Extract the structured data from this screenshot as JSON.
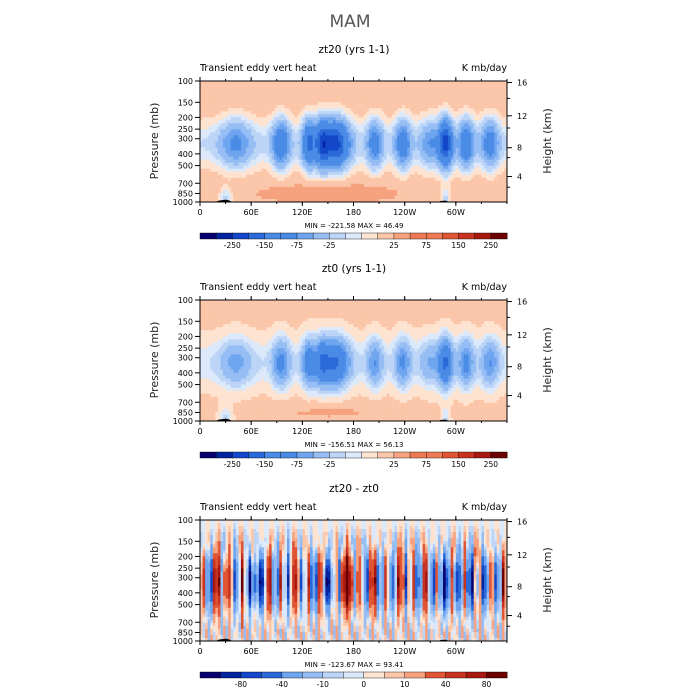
{
  "figure": {
    "title": "MAM"
  },
  "chart_data": [
    {
      "type": "heatmap",
      "title": "zt20 (yrs 1-1)",
      "left_label": "Transient eddy vert heat",
      "right_label": "K mb/day",
      "xlabel": "",
      "ylabel": "Pressure (mb)",
      "y2label": "Height (km)",
      "x_ticks": [
        "0",
        "60E",
        "120E",
        "180",
        "120W",
        "60W"
      ],
      "y_ticks": [
        "100",
        "150",
        "200",
        "250",
        "300",
        "400",
        "500",
        "700",
        "850",
        "1000"
      ],
      "y2_ticks": [
        "16",
        "12",
        "8",
        "4"
      ],
      "xlim": [
        0,
        360
      ],
      "ylim": [
        1000,
        100
      ],
      "min_max_text": "MIN = -221.58   MAX =   46.49",
      "min": -221.58,
      "max": 46.49,
      "colorbar_labels": [
        "-250",
        "-150",
        "-75",
        "-25",
        "25",
        "75",
        "150",
        "250"
      ],
      "colorbar_levels": [
        -300,
        -250,
        -200,
        -150,
        -100,
        -75,
        -50,
        -25,
        -10,
        0,
        10,
        25,
        50,
        75,
        100,
        150,
        200,
        250
      ],
      "field_summary": "mostly weakly positive; strong negative cores 250-500 mb near 150-165E and 70-80W"
    },
    {
      "type": "heatmap",
      "title": "zt0 (yrs 1-1)",
      "left_label": "Transient eddy vert heat",
      "right_label": "K mb/day",
      "xlabel": "",
      "ylabel": "Pressure (mb)",
      "y2label": "Height (km)",
      "x_ticks": [
        "0",
        "60E",
        "120E",
        "180",
        "120W",
        "60W"
      ],
      "y_ticks": [
        "100",
        "150",
        "200",
        "250",
        "300",
        "400",
        "500",
        "700",
        "850",
        "1000"
      ],
      "y2_ticks": [
        "16",
        "12",
        "8",
        "4"
      ],
      "xlim": [
        0,
        360
      ],
      "ylim": [
        1000,
        100
      ],
      "min_max_text": "MIN = -156.51   MAX =   56.13",
      "min": -156.51,
      "max": 56.13,
      "colorbar_labels": [
        "-250",
        "-150",
        "-75",
        "-25",
        "25",
        "75",
        "150",
        "250"
      ],
      "colorbar_levels": [
        -300,
        -250,
        -200,
        -150,
        -100,
        -75,
        -50,
        -25,
        -10,
        0,
        10,
        25,
        50,
        75,
        100,
        150,
        200,
        250
      ],
      "field_summary": "weaker negative cores 250-400 mb near 150-165E and 70W"
    },
    {
      "type": "heatmap",
      "title": "zt20 - zt0",
      "left_label": "Transient eddy vert heat",
      "right_label": "K mb/day",
      "xlabel": "",
      "ylabel": "Pressure (mb)",
      "y2label": "Height (km)",
      "x_ticks": [
        "0",
        "60E",
        "120E",
        "180",
        "120W",
        "60W"
      ],
      "y_ticks": [
        "100",
        "150",
        "200",
        "250",
        "300",
        "400",
        "500",
        "700",
        "850",
        "1000"
      ],
      "y2_ticks": [
        "16",
        "12",
        "8",
        "4"
      ],
      "xlim": [
        0,
        360
      ],
      "ylim": [
        1000,
        100
      ],
      "min_max_text": "MIN = -123.67   MAX =   93.41",
      "min": -123.67,
      "max": 93.41,
      "colorbar_labels": [
        "-80",
        "-40",
        "-10",
        "0",
        "10",
        "40",
        "80"
      ],
      "colorbar_levels": [
        -100,
        -80,
        -60,
        -40,
        -20,
        -10,
        -5,
        0,
        5,
        10,
        20,
        40,
        60,
        80
      ],
      "field_summary": "alternating positive/negative columns 200-600 mb; strong positive core near 180"
    }
  ],
  "colormap": [
    "#08006e",
    "#00249f",
    "#1346c8",
    "#2a6ad8",
    "#4a8be6",
    "#6fa5ef",
    "#96bef4",
    "#bcd5f7",
    "#dce9fb",
    "#fde3d0",
    "#fbc6a9",
    "#f6a27f",
    "#ee7a55",
    "#e05533",
    "#c83220",
    "#a81810",
    "#6a0000"
  ]
}
